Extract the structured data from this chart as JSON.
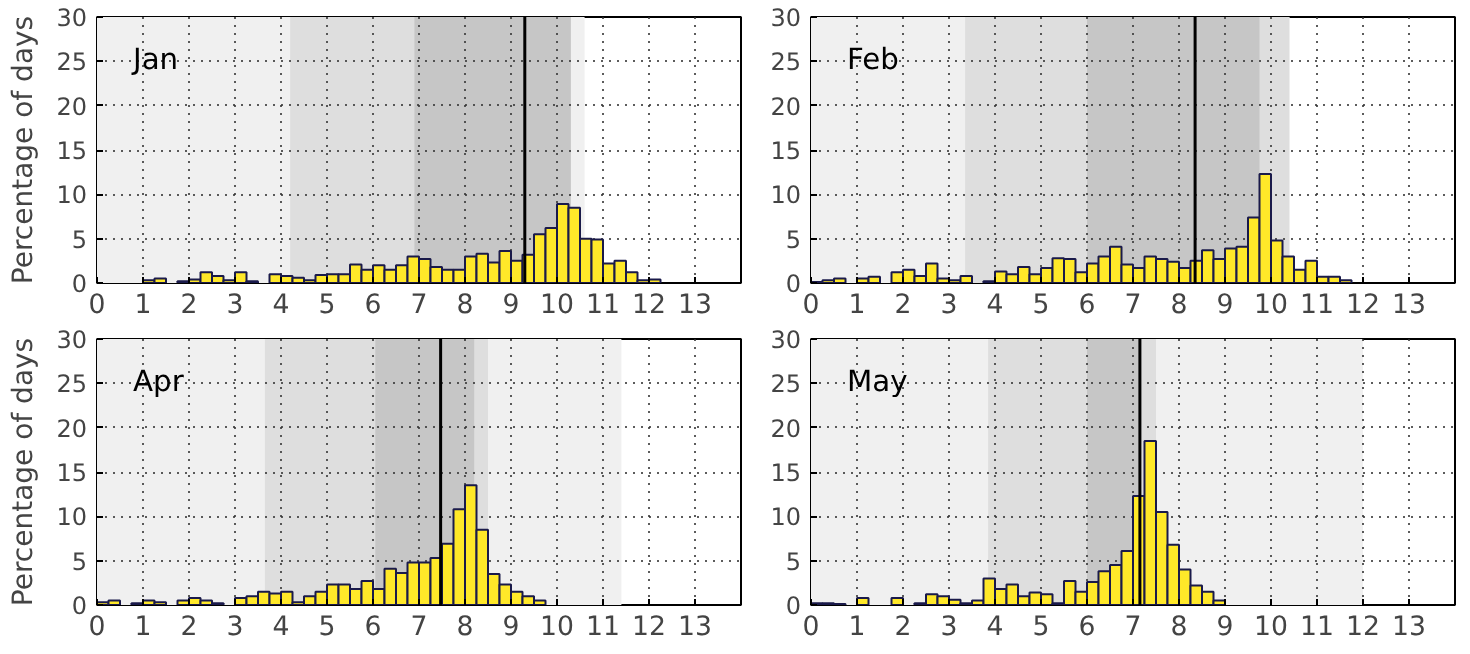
{
  "chart_data": [
    {
      "type": "histogram",
      "title": "Jan",
      "ylabel": "Percentage of days",
      "color": "#ffe829",
      "bins": [
        0,
        0.25,
        0.5,
        0.75,
        1,
        1.25,
        1.5,
        1.75,
        2,
        2.25,
        2.5,
        2.75,
        3,
        3.25,
        3.5,
        3.75,
        4,
        4.25,
        4.5,
        4.75,
        5,
        5.25,
        5.5,
        5.75,
        6,
        6.25,
        6.5,
        6.75,
        7,
        7.25,
        7.5,
        7.75,
        8,
        8.25,
        8.5,
        8.75,
        9,
        9.25,
        9.5,
        9.75,
        10,
        10.25,
        10.5,
        10.75,
        11,
        11.25,
        11.5,
        11.75,
        12,
        12.25,
        12.5,
        12.75,
        13,
        13.25,
        13.5,
        13.75,
        14
      ],
      "values": [
        0,
        0,
        0,
        0,
        0.3,
        0.5,
        0,
        0.2,
        0.4,
        1.2,
        0.8,
        0.3,
        1.2,
        0.2,
        0,
        1.0,
        0.8,
        0.6,
        0.3,
        0.9,
        1.0,
        1.0,
        2.1,
        1.5,
        2.0,
        1.5,
        2.0,
        3.0,
        2.7,
        1.8,
        1.5,
        1.5,
        3.0,
        3.3,
        2.3,
        3.6,
        2.5,
        3.2,
        5.5,
        6.2,
        8.9,
        8.5,
        5.0,
        4.9,
        2.2,
        2.5,
        1.2,
        0.3,
        0.4,
        0,
        0,
        0,
        0,
        0,
        0,
        0
      ],
      "xlim": [
        0,
        14
      ],
      "ylim": [
        0,
        30
      ],
      "xticks": [
        0,
        1,
        2,
        3,
        4,
        5,
        6,
        7,
        8,
        9,
        10,
        11,
        12,
        13
      ],
      "yticks": [
        0,
        5,
        10,
        15,
        20,
        25,
        30
      ],
      "grid": true,
      "bands": [
        {
          "axis": "x",
          "from": 0,
          "to": 10.6,
          "color": "#f0f0f0"
        },
        {
          "axis": "x",
          "from": 4.2,
          "to": 10.3,
          "color": "#dedede"
        },
        {
          "axis": "x",
          "from": 6.9,
          "to": 10.3,
          "color": "#c6c6c6"
        }
      ],
      "ref_lines": [
        {
          "axis": "x",
          "value": 9.3,
          "color": "#000000"
        }
      ]
    },
    {
      "type": "histogram",
      "title": "Feb",
      "color": "#ffe829",
      "bins": [
        0,
        0.25,
        0.5,
        0.75,
        1,
        1.25,
        1.5,
        1.75,
        2,
        2.25,
        2.5,
        2.75,
        3,
        3.25,
        3.5,
        3.75,
        4,
        4.25,
        4.5,
        4.75,
        5,
        5.25,
        5.5,
        5.75,
        6,
        6.25,
        6.5,
        6.75,
        7,
        7.25,
        7.5,
        7.75,
        8,
        8.25,
        8.5,
        8.75,
        9,
        9.25,
        9.5,
        9.75,
        10,
        10.25,
        10.5,
        10.75,
        11,
        11.25,
        11.5,
        11.75,
        12,
        12.25,
        12.5,
        12.75,
        13,
        13.25,
        13.5,
        13.75,
        14
      ],
      "values": [
        0.1,
        0.3,
        0.5,
        0,
        0.5,
        0.7,
        0,
        1.2,
        1.5,
        0.8,
        2.2,
        0.5,
        0.3,
        0.8,
        0,
        0.2,
        1.3,
        1.0,
        1.8,
        1.0,
        1.7,
        2.8,
        2.7,
        1.2,
        2.2,
        3.0,
        4.1,
        2.1,
        1.7,
        3.0,
        2.7,
        2.4,
        1.7,
        2.5,
        3.7,
        2.7,
        3.9,
        4.1,
        7.4,
        12.3,
        4.8,
        3.0,
        1.5,
        2.5,
        0.7,
        0.7,
        0.3,
        0,
        0,
        0,
        0,
        0,
        0,
        0,
        0,
        0
      ],
      "xlim": [
        0,
        14
      ],
      "ylim": [
        0,
        30
      ],
      "xticks": [
        0,
        1,
        2,
        3,
        4,
        5,
        6,
        7,
        8,
        9,
        10,
        11,
        12,
        13
      ],
      "yticks": [
        0,
        5,
        10,
        15,
        20,
        25,
        30
      ],
      "grid": true,
      "bands": [
        {
          "axis": "x",
          "from": 0,
          "to": 10.4,
          "color": "#f0f0f0"
        },
        {
          "axis": "x",
          "from": 3.35,
          "to": 10.4,
          "color": "#dedede"
        },
        {
          "axis": "x",
          "from": 6.0,
          "to": 9.75,
          "color": "#c6c6c6"
        }
      ],
      "ref_lines": [
        {
          "axis": "x",
          "value": 8.35,
          "color": "#000000"
        }
      ]
    },
    {
      "type": "histogram",
      "title": "Apr",
      "ylabel": "Percentage of days",
      "color": "#ffe829",
      "bins": [
        0,
        0.25,
        0.5,
        0.75,
        1,
        1.25,
        1.5,
        1.75,
        2,
        2.25,
        2.5,
        2.75,
        3,
        3.25,
        3.5,
        3.75,
        4,
        4.25,
        4.5,
        4.75,
        5,
        5.25,
        5.5,
        5.75,
        6,
        6.25,
        6.5,
        6.75,
        7,
        7.25,
        7.5,
        7.75,
        8,
        8.25,
        8.5,
        8.75,
        9,
        9.25,
        9.5,
        9.75,
        10,
        10.25,
        10.5,
        10.75,
        11,
        11.25,
        11.5,
        11.75,
        12,
        12.25,
        12.5,
        12.75,
        13,
        13.25,
        13.5,
        13.75,
        14
      ],
      "values": [
        0.3,
        0.5,
        0,
        0.2,
        0.5,
        0.3,
        0,
        0.5,
        0.8,
        0.5,
        0.2,
        0,
        0.8,
        1.0,
        1.5,
        1.3,
        1.5,
        0.3,
        1.0,
        1.5,
        2.3,
        2.3,
        1.8,
        2.7,
        1.8,
        4.1,
        3.6,
        4.8,
        4.8,
        5.3,
        6.9,
        10.8,
        13.5,
        8.5,
        3.5,
        2.3,
        1.5,
        1.0,
        0.5,
        0,
        0,
        0,
        0,
        0,
        0,
        0,
        0,
        0,
        0,
        0,
        0,
        0,
        0,
        0,
        0,
        0
      ],
      "xlim": [
        0,
        14
      ],
      "ylim": [
        0,
        30
      ],
      "xticks": [
        0,
        1,
        2,
        3,
        4,
        5,
        6,
        7,
        8,
        9,
        10,
        11,
        12,
        13
      ],
      "yticks": [
        0,
        5,
        10,
        15,
        20,
        25,
        30
      ],
      "grid": true,
      "bands": [
        {
          "axis": "x",
          "from": 0,
          "to": 11.4,
          "color": "#f0f0f0"
        },
        {
          "axis": "x",
          "from": 3.65,
          "to": 8.5,
          "color": "#dedede"
        },
        {
          "axis": "x",
          "from": 6.05,
          "to": 8.2,
          "color": "#c6c6c6"
        }
      ],
      "ref_lines": [
        {
          "axis": "x",
          "value": 7.47,
          "color": "#000000"
        }
      ]
    },
    {
      "type": "histogram",
      "title": "May",
      "color": "#ffe829",
      "bins": [
        0,
        0.25,
        0.5,
        0.75,
        1,
        1.25,
        1.5,
        1.75,
        2,
        2.25,
        2.5,
        2.75,
        3,
        3.25,
        3.5,
        3.75,
        4,
        4.25,
        4.5,
        4.75,
        5,
        5.25,
        5.5,
        5.75,
        6,
        6.25,
        6.5,
        6.75,
        7,
        7.25,
        7.5,
        7.75,
        8,
        8.25,
        8.5,
        8.75,
        9,
        9.25,
        9.5,
        9.75,
        10,
        10.25,
        10.5,
        10.75,
        11,
        11.25,
        11.5,
        11.75,
        12,
        12.25,
        12.5,
        12.75,
        13,
        13.25,
        13.5,
        13.75,
        14
      ],
      "values": [
        0.2,
        0.2,
        0.1,
        0,
        0.8,
        0,
        0,
        0.8,
        0,
        0.2,
        1.2,
        1.0,
        0.6,
        0.2,
        0.5,
        3.0,
        1.8,
        2.3,
        1.0,
        1.4,
        1.2,
        0.2,
        2.7,
        1.5,
        2.6,
        3.8,
        4.5,
        6.1,
        12.3,
        18.5,
        10.5,
        6.8,
        4.0,
        2.2,
        1.5,
        0.5,
        0,
        0,
        0,
        0,
        0,
        0,
        0,
        0,
        0,
        0,
        0,
        0,
        0,
        0,
        0,
        0,
        0,
        0,
        0,
        0
      ],
      "xlim": [
        0,
        14
      ],
      "ylim": [
        0,
        30
      ],
      "xticks": [
        0,
        1,
        2,
        3,
        4,
        5,
        6,
        7,
        8,
        9,
        10,
        11,
        12,
        13
      ],
      "yticks": [
        0,
        5,
        10,
        15,
        20,
        25,
        30
      ],
      "grid": true,
      "bands": [
        {
          "axis": "x",
          "from": 0,
          "to": 12.0,
          "color": "#f0f0f0"
        },
        {
          "axis": "x",
          "from": 3.85,
          "to": 7.5,
          "color": "#dedede"
        },
        {
          "axis": "x",
          "from": 6.0,
          "to": 7.15,
          "color": "#c6c6c6"
        }
      ],
      "ref_lines": [
        {
          "axis": "x",
          "value": 7.15,
          "color": "#000000"
        }
      ]
    }
  ]
}
